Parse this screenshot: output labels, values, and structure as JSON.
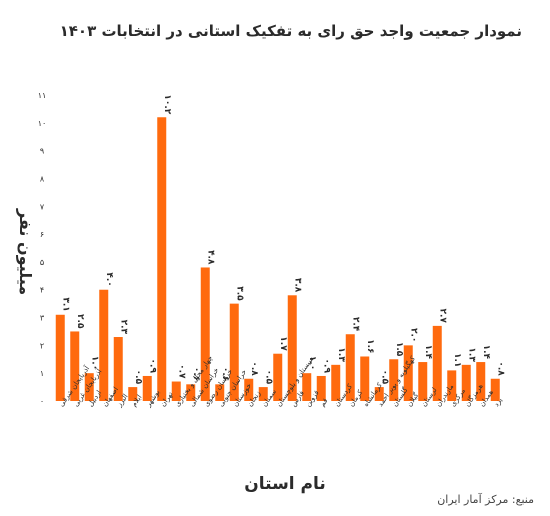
{
  "title": "نمودار جمعیت واجد حق رای به تفکیک استانی در انتخابات ۱۴۰۳",
  "source": "منبع: مرکز آمار ایران",
  "colors": {
    "bar": "#ff6a0e",
    "text": "#2b2b2b",
    "axis": "#333333"
  },
  "chart_data": {
    "type": "bar",
    "title": "نمودار جمعیت واجد حق رای به تفکیک استانی در انتخابات ۱۴۰۳",
    "xlabel": "نام استان",
    "ylabel": "میلیون نفر",
    "ylim": [
      0,
      11
    ],
    "yticks": [
      0,
      1,
      2,
      3,
      4,
      5,
      6,
      7,
      8,
      9,
      10,
      11
    ],
    "ytick_labels": [
      "۰",
      "۱",
      "۲",
      "۳",
      "۴",
      "۵",
      "۶",
      "۷",
      "۸",
      "۹",
      "۱۰",
      "۱۱"
    ],
    "grid": false,
    "categories": [
      "آذربایجان شرقی",
      "آذربایجان غربی",
      "اردبیل",
      "اصفهان",
      "البرز",
      "ایلام",
      "بوشهر",
      "تهران",
      "چهار محال و بختیاری",
      "خراسان شمالی",
      "خراسان رضوی",
      "خراسان جنوبی",
      "خوزستان",
      "زنجان",
      "سمنان",
      "سیستان و بلوچستان",
      "فارس",
      "قزوین",
      "قم",
      "کردستان",
      "کرمان",
      "کرمانشاه",
      "کهگیلویه و بویر احمد",
      "گلستان",
      "گیلان",
      "لرستان",
      "مازندران",
      "مرکزی",
      "هرمزگان",
      "همدان",
      "یزد"
    ],
    "values": [
      3.1,
      2.5,
      1.0,
      4.0,
      2.3,
      0.5,
      0.9,
      10.2,
      0.7,
      0.6,
      4.8,
      0.6,
      3.5,
      0.8,
      0.5,
      1.7,
      3.8,
      1.0,
      0.9,
      1.3,
      2.4,
      1.6,
      0.5,
      1.5,
      2.0,
      1.4,
      2.7,
      1.1,
      1.3,
      1.4,
      0.8
    ],
    "value_labels": [
      "۳.۱",
      "۲.۵",
      "۱.۰",
      "۴.۰",
      "۲.۳",
      "۰.۵",
      "۰.۹",
      "۱۰.۲",
      "۰.۷",
      "۰.۶",
      "۴.۸",
      "۰.۶",
      "۳.۵",
      "۰.۸",
      "۰.۵",
      "۱.۷",
      "۳.۸",
      "۱.۰",
      "۰.۹",
      "۱.۳",
      "۲.۴",
      "۱.۶",
      "۰.۵",
      "۱.۵",
      "۲.۰",
      "۱.۴",
      "۲.۷",
      "۱.۱",
      "۱.۳",
      "۱.۴",
      "۰.۸"
    ]
  }
}
